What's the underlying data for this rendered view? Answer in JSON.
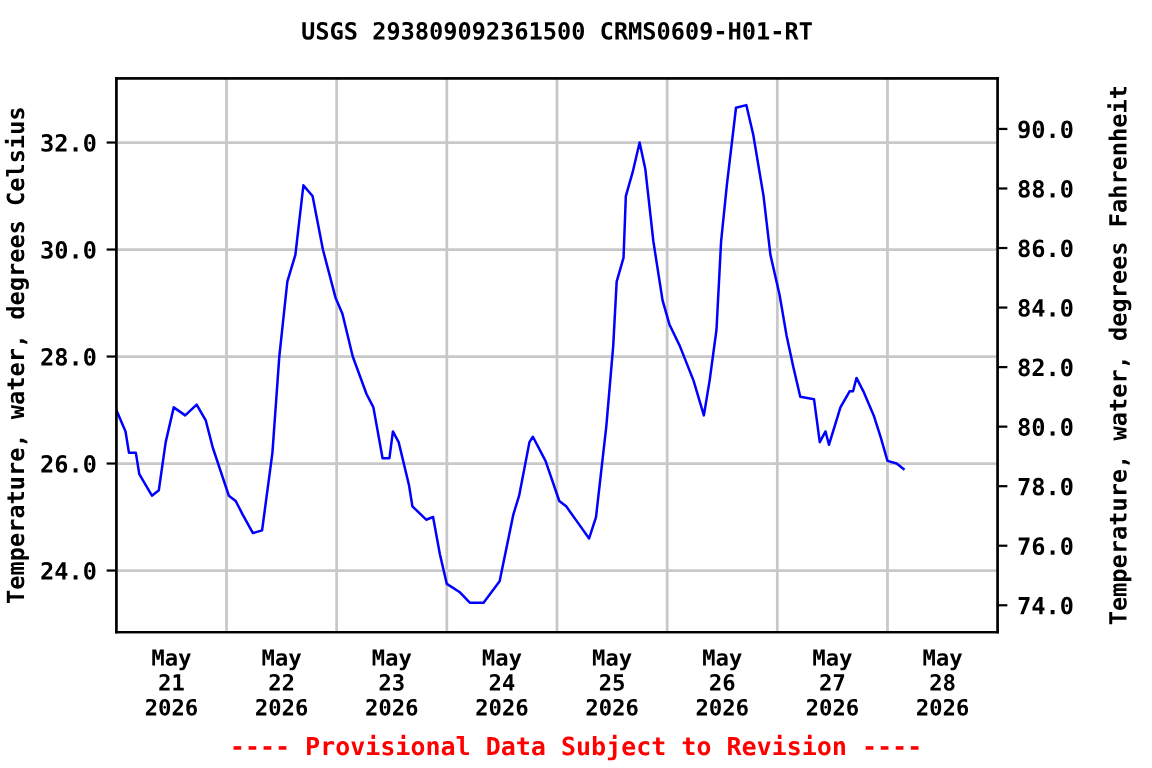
{
  "chart_data": {
    "type": "line",
    "title": "USGS 293809092361500 CRMS0609-H01-RT",
    "ylabel": "Temperature, water, degrees Celsius",
    "y2label": "Temperature, water, degrees Fahrenheit",
    "annotations": [
      "---- Provisional Data Subject to Revision ----"
    ],
    "x": [
      "2026-05-21T00:00",
      "2026-05-21T02:00",
      "2026-05-21T02:45",
      "2026-05-21T04:15",
      "2026-05-21T05:00",
      "2026-05-21T07:45",
      "2026-05-21T09:15",
      "2026-05-21T10:45",
      "2026-05-21T12:30",
      "2026-05-21T15:00",
      "2026-05-21T17:30",
      "2026-05-21T19:30",
      "2026-05-21T21:00",
      "2026-05-22T00:30",
      "2026-05-22T02:00",
      "2026-05-22T03:30",
      "2026-05-22T05:45",
      "2026-05-22T07:45",
      "2026-05-22T10:00",
      "2026-05-22T11:30",
      "2026-05-22T13:15",
      "2026-05-22T15:00",
      "2026-05-22T16:45",
      "2026-05-22T18:45",
      "2026-05-22T21:00",
      "2026-05-22T23:45",
      "2026-05-23T01:15",
      "2026-05-23T03:30",
      "2026-05-23T06:30",
      "2026-05-23T08:00",
      "2026-05-23T10:00",
      "2026-05-23T11:30",
      "2026-05-23T12:15",
      "2026-05-23T13:30",
      "2026-05-23T15:45",
      "2026-05-23T16:30",
      "2026-05-23T19:30",
      "2026-05-23T21:00",
      "2026-05-23T22:30",
      "2026-05-24T00:00",
      "2026-05-24T02:45",
      "2026-05-24T05:00",
      "2026-05-24T08:00",
      "2026-05-24T09:45",
      "2026-05-24T11:30",
      "2026-05-24T14:30",
      "2026-05-24T15:45",
      "2026-05-24T18:00",
      "2026-05-24T18:45",
      "2026-05-24T21:30",
      "2026-05-25T00:30",
      "2026-05-25T02:00",
      "2026-05-25T04:30",
      "2026-05-25T07:00",
      "2026-05-25T08:30",
      "2026-05-25T10:45",
      "2026-05-25T12:15",
      "2026-05-25T13:00",
      "2026-05-25T14:30",
      "2026-05-25T15:00",
      "2026-05-25T16:30",
      "2026-05-25T18:00",
      "2026-05-25T19:15",
      "2026-05-25T21:00",
      "2026-05-25T23:00",
      "2026-05-26T00:30",
      "2026-05-26T02:45",
      "2026-05-26T05:45",
      "2026-05-26T08:00",
      "2026-05-26T09:15",
      "2026-05-26T10:45",
      "2026-05-26T11:45",
      "2026-05-26T13:00",
      "2026-05-26T15:00",
      "2026-05-26T17:15",
      "2026-05-26T18:45",
      "2026-05-26T21:00",
      "2026-05-26T22:30",
      "2026-05-27T00:30",
      "2026-05-27T02:00",
      "2026-05-27T03:30",
      "2026-05-27T05:00",
      "2026-05-27T08:00",
      "2026-05-27T09:15",
      "2026-05-27T10:30",
      "2026-05-27T11:15",
      "2026-05-27T13:45",
      "2026-05-27T15:45",
      "2026-05-27T16:30",
      "2026-05-27T17:15",
      "2026-05-27T18:45",
      "2026-05-27T21:00",
      "2026-05-27T22:30",
      "2026-05-28T00:00",
      "2026-05-28T02:00",
      "2026-05-28T03:30"
    ],
    "series": [
      {
        "color": "#0000ff",
        "values": [
          27.0,
          26.6,
          26.2,
          26.2,
          25.8,
          25.4,
          25.5,
          26.4,
          27.05,
          26.9,
          27.1,
          26.8,
          26.3,
          25.4,
          25.3,
          25.05,
          24.7,
          24.75,
          26.2,
          28.0,
          29.4,
          29.9,
          31.2,
          31.0,
          30.0,
          29.1,
          28.8,
          28.0,
          27.3,
          27.05,
          26.1,
          26.1,
          26.6,
          26.4,
          25.6,
          25.2,
          24.95,
          25.0,
          24.3,
          23.75,
          23.6,
          23.4,
          23.4,
          23.6,
          23.8,
          25.05,
          25.4,
          26.4,
          26.5,
          26.05,
          25.3,
          25.2,
          24.9,
          24.6,
          25.0,
          26.7,
          28.2,
          29.4,
          29.85,
          31.0,
          31.45,
          32.0,
          31.5,
          30.15,
          29.05,
          28.6,
          28.2,
          27.55,
          26.9,
          27.55,
          28.5,
          30.15,
          31.2,
          32.65,
          32.7,
          32.15,
          31.0,
          29.9,
          29.15,
          28.4,
          27.8,
          27.25,
          27.2,
          26.4,
          26.6,
          26.35,
          27.05,
          27.35,
          27.35,
          27.6,
          27.35,
          26.9,
          26.5,
          26.05,
          26.0,
          25.9
        ]
      }
    ],
    "xlim": [
      "2026-05-21T00:00",
      "2026-05-29T00:00"
    ],
    "xticks": [
      {
        "value": "2026-05-21T00:00",
        "label": null
      },
      {
        "value": "2026-05-21T12:00",
        "label": "May\n21\n2026"
      },
      {
        "value": "2026-05-22T00:00",
        "label": null
      },
      {
        "value": "2026-05-22T12:00",
        "label": "May\n22\n2026"
      },
      {
        "value": "2026-05-23T00:00",
        "label": null
      },
      {
        "value": "2026-05-23T12:00",
        "label": "May\n23\n2026"
      },
      {
        "value": "2026-05-24T00:00",
        "label": null
      },
      {
        "value": "2026-05-24T12:00",
        "label": "May\n24\n2026"
      },
      {
        "value": "2026-05-25T00:00",
        "label": null
      },
      {
        "value": "2026-05-25T12:00",
        "label": "May\n25\n2026"
      },
      {
        "value": "2026-05-26T00:00",
        "label": null
      },
      {
        "value": "2026-05-26T12:00",
        "label": "May\n26\n2026"
      },
      {
        "value": "2026-05-27T00:00",
        "label": null
      },
      {
        "value": "2026-05-27T12:00",
        "label": "May\n27\n2026"
      },
      {
        "value": "2026-05-28T00:00",
        "label": null
      },
      {
        "value": "2026-05-28T12:00",
        "label": "May\n28\n2026"
      },
      {
        "value": "2026-05-29T00:00",
        "label": null
      }
    ],
    "ylim": [
      22.85,
      33.2
    ],
    "yticks": [
      {
        "value": 24,
        "label": "24.0"
      },
      {
        "value": 26,
        "label": "26.0"
      },
      {
        "value": 28,
        "label": "28.0"
      },
      {
        "value": 30,
        "label": "30.0"
      },
      {
        "value": 32,
        "label": "32.0"
      }
    ],
    "y2lim": [
      73.1,
      91.7
    ],
    "y2ticks": [
      {
        "value": 74,
        "label": "74.0"
      },
      {
        "value": 76,
        "label": "76.0"
      },
      {
        "value": 78,
        "label": "78.0"
      },
      {
        "value": 80,
        "label": "80.0"
      },
      {
        "value": 82,
        "label": "82.0"
      },
      {
        "value": 84,
        "label": "84.0"
      },
      {
        "value": 86,
        "label": "86.0"
      },
      {
        "value": 88,
        "label": "88.0"
      },
      {
        "value": 90,
        "label": "90.0"
      }
    ],
    "grid": true,
    "marker": "none",
    "line_style": "solid"
  }
}
